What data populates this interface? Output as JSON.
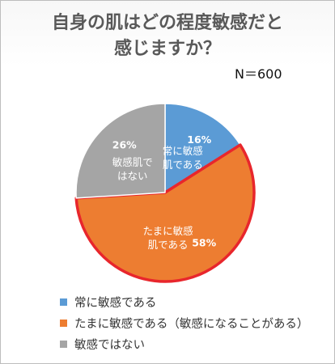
{
  "chart_data": {
    "type": "pie",
    "title_lines": [
      "自身の肌はどの程度敏感だと",
      "感じますか？"
    ],
    "sample_size": "N＝600",
    "slices": [
      {
        "label": "常に敏感である",
        "inner_label": [
          "常に敏感",
          "肌である"
        ],
        "value": 16,
        "percent_label": "16%",
        "color": "#5b9bd5"
      },
      {
        "label": "たまに敏感である（敏感になることがある）",
        "inner_label": [
          "たまに敏感",
          "肌である"
        ],
        "value": 58,
        "percent_label": "58%",
        "color": "#ed7d31",
        "highlight_color": "#e8262c"
      },
      {
        "label": "敏感ではない",
        "inner_label": [
          "敏感肌で",
          "はない"
        ],
        "value": 26,
        "percent_label": "26%",
        "color": "#a5a5a5"
      }
    ],
    "legend_placement": "bottom-left"
  }
}
